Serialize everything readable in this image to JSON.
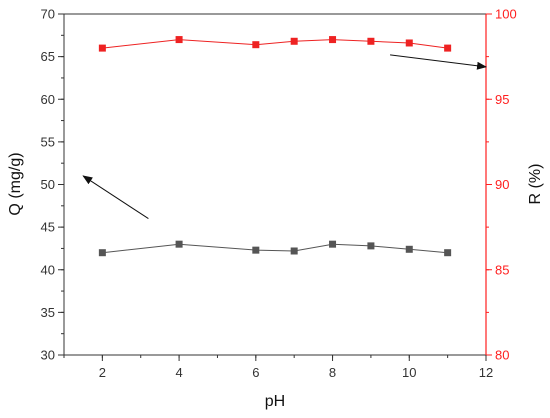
{
  "colors": {
    "left_axis": "#333333",
    "right_axis": "#ff1f1f",
    "q_series": "#555555",
    "r_series": "#ee2222",
    "arrow": "#111111"
  },
  "chart_data": {
    "type": "line",
    "xlabel": "pH",
    "ylabel_left": "Q (mg/g)",
    "ylabel_right": "R (%)",
    "xlim": [
      1,
      12
    ],
    "x_ticks": [
      "2",
      "4",
      "6",
      "8",
      "10",
      "12"
    ],
    "ylim_left": [
      30,
      70
    ],
    "y_ticks_left": [
      "30",
      "35",
      "40",
      "45",
      "50",
      "55",
      "60",
      "65",
      "70"
    ],
    "ylim_right": [
      80,
      100
    ],
    "y_ticks_right": [
      "80",
      "85",
      "90",
      "95",
      "100"
    ],
    "grid": false,
    "marker": "square",
    "series": [
      {
        "axis": "left",
        "x": [
          2,
          4,
          6,
          7,
          8,
          9,
          10,
          11
        ],
        "values": [
          42.0,
          43.0,
          42.3,
          42.2,
          43.0,
          42.8,
          42.4,
          42.0
        ]
      },
      {
        "axis": "right",
        "x": [
          2,
          4,
          6,
          7,
          8,
          9,
          10,
          11
        ],
        "values": [
          98.0,
          98.5,
          98.2,
          98.4,
          98.5,
          98.4,
          98.3,
          98.0
        ]
      }
    ],
    "annotations": [
      {
        "type": "arrow",
        "points_to": "left-axis",
        "from": [
          3.2,
          46.0
        ],
        "to": [
          1.5,
          51.0
        ]
      },
      {
        "type": "arrow",
        "points_to": "right-axis",
        "from": [
          9.5,
          97.6
        ],
        "to": [
          12.0,
          96.9
        ]
      }
    ]
  }
}
